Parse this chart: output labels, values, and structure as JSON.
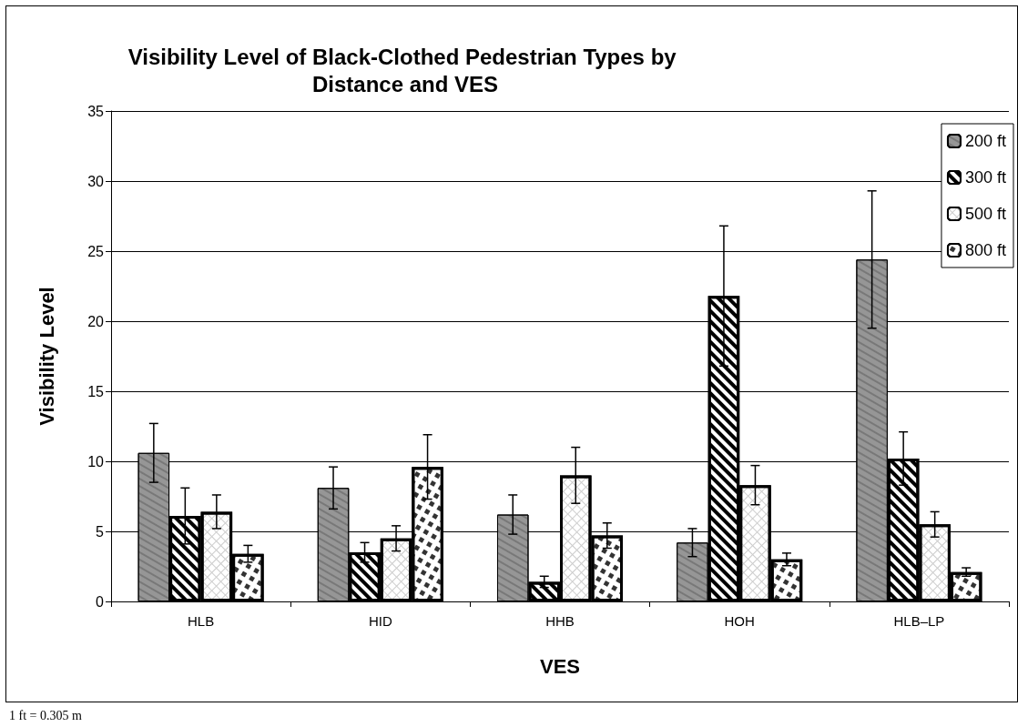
{
  "chart_data": {
    "type": "bar",
    "title": "Visibility Level of Black-Clothed Pedestrian Types by Distance and VES",
    "xlabel": "VES",
    "ylabel": "Visibility Level",
    "categories": [
      "HLB",
      "HID",
      "HHB",
      "HOH",
      "HLB–LP"
    ],
    "series": [
      {
        "name": "200 ft",
        "color": "#969696",
        "values": [
          10.6,
          8.1,
          6.2,
          4.2,
          24.4
        ],
        "errors": [
          2.1,
          1.5,
          1.4,
          1.0,
          4.9
        ]
      },
      {
        "name": "300 ft",
        "color": "#ffffff",
        "values": [
          6.1,
          3.5,
          1.4,
          21.8,
          10.2
        ],
        "errors": [
          2.0,
          0.7,
          0.4,
          5.0,
          1.9
        ]
      },
      {
        "name": "500 ft",
        "color": "#ffffff",
        "values": [
          6.4,
          4.5,
          9.0,
          8.3,
          5.5
        ],
        "errors": [
          1.2,
          0.9,
          2.0,
          1.4,
          0.9
        ]
      },
      {
        "name": "800 ft",
        "color": "#ffffff",
        "values": [
          3.4,
          9.6,
          4.7,
          3.0,
          2.1
        ],
        "errors": [
          0.6,
          2.3,
          0.9,
          0.45,
          0.3
        ]
      }
    ],
    "ylim": [
      0,
      35
    ],
    "yticks": [
      0,
      5,
      10,
      15,
      20,
      25,
      30,
      35
    ],
    "grid": "y",
    "legend": "top right",
    "annotations": [
      "1 ft = 0.305 m"
    ]
  }
}
